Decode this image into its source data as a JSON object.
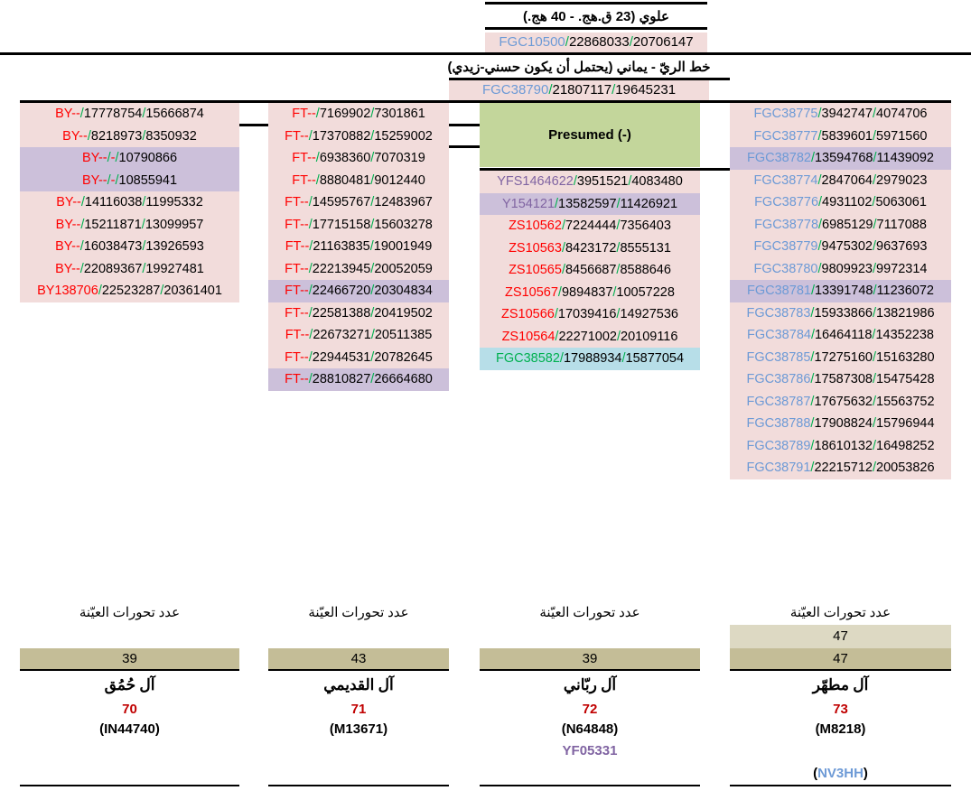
{
  "colors": {
    "pink": "#F2DCDB",
    "purple": "#CCC0DA",
    "green_box": "#C3D69B",
    "light_blue": "#B7DEE8",
    "tan": "#C4BD97",
    "tan_light": "#DDD9C3",
    "red": "#FF0000",
    "green": "#00B050",
    "blue": "#6D9AD6",
    "violet": "#8064A2",
    "dark_red": "#C00000",
    "black": "#000000"
  },
  "header_top": {
    "title": "علوي (23 ق.هج. - 40 هج.)",
    "snp": {
      "snp": "FGC10500",
      "snp_color": "blue",
      "v1": "22868033",
      "v2": "20706147",
      "bg": "pink"
    }
  },
  "header_second": {
    "title": "خط الريّ - يماني (يحتمل أن يكون حسني-زيدي)",
    "snp": {
      "snp": "FGC38790",
      "snp_color": "blue",
      "v1": "21807117",
      "v2": "19645231",
      "bg": "pink"
    }
  },
  "presumed": {
    "label": "Presumed (-)",
    "bg": "green_box"
  },
  "columns": [
    {
      "name": "by-branch",
      "rows": [
        {
          "snp": "BY--",
          "snp_color": "red",
          "v1": "17778754",
          "v2": "15666874",
          "bg": "pink"
        },
        {
          "snp": "BY--",
          "snp_color": "red",
          "v1": "8218973",
          "v2": "8350932",
          "bg": "pink"
        },
        {
          "snp": "BY--",
          "snp_color": "red",
          "v1": "-",
          "v1_color": "red",
          "v2": "10790866",
          "bg": "purple"
        },
        {
          "snp": "BY--",
          "snp_color": "red",
          "v1": "-",
          "v1_color": "red",
          "v2": "10855941",
          "bg": "purple"
        },
        {
          "snp": "BY--",
          "snp_color": "red",
          "v1": "14116038",
          "v2": "11995332",
          "bg": "pink"
        },
        {
          "snp": "BY--",
          "snp_color": "red",
          "v1": "15211871",
          "v2": "13099957",
          "bg": "pink"
        },
        {
          "snp": "BY--",
          "snp_color": "red",
          "v1": "16038473",
          "v2": "13926593",
          "bg": "pink"
        },
        {
          "snp": "BY--",
          "snp_color": "red",
          "v1": "22089367",
          "v2": "19927481",
          "bg": "pink"
        },
        {
          "snp": "BY138706",
          "snp_color": "red",
          "v1": "22523287",
          "v2": "20361401",
          "bg": "pink"
        }
      ]
    },
    {
      "name": "ft-branch",
      "rows": [
        {
          "snp": "FT--",
          "snp_color": "red",
          "v1": "7169902",
          "v2": "7301861",
          "bg": "pink"
        },
        {
          "snp": "FT--",
          "snp_color": "red",
          "v1": "17370882",
          "v2": "15259002",
          "bg": "pink"
        },
        {
          "snp": "FT--",
          "snp_color": "red",
          "v1": "6938360",
          "v2": "7070319",
          "bg": "pink"
        },
        {
          "snp": "FT--",
          "snp_color": "red",
          "v1": "8880481",
          "v2": "9012440",
          "bg": "pink"
        },
        {
          "snp": "FT--",
          "snp_color": "red",
          "v1": "14595767",
          "v2": "12483967",
          "bg": "pink"
        },
        {
          "snp": "FT--",
          "snp_color": "red",
          "v1": "17715158",
          "v2": "15603278",
          "bg": "pink"
        },
        {
          "snp": "FT--",
          "snp_color": "red",
          "v1": "21163835",
          "v2": "19001949",
          "bg": "pink"
        },
        {
          "snp": "FT--",
          "snp_color": "red",
          "v1": "22213945",
          "v2": "20052059",
          "bg": "pink"
        },
        {
          "snp": "FT--",
          "snp_color": "red",
          "v1": "22466720",
          "v2": "20304834",
          "bg": "purple"
        },
        {
          "snp": "FT--",
          "snp_color": "red",
          "v1": "22581388",
          "v2": "20419502",
          "bg": "pink"
        },
        {
          "snp": "FT--",
          "snp_color": "red",
          "v1": "22673271",
          "v2": "20511385",
          "bg": "pink"
        },
        {
          "snp": "FT--",
          "snp_color": "red",
          "v1": "22944531",
          "v2": "20782645",
          "bg": "pink"
        },
        {
          "snp": "FT--",
          "snp_color": "red",
          "v1": "28810827",
          "v2": "26664680",
          "bg": "purple"
        }
      ]
    },
    {
      "name": "middle-branch",
      "rows": [
        {
          "snp": "YFS1464622",
          "snp_color": "violet",
          "v1": "3951521",
          "v2": "4083480",
          "bg": "pink"
        },
        {
          "snp": "Y154121",
          "snp_color": "violet",
          "v1": "13582597",
          "v2": "11426921",
          "bg": "purple"
        },
        {
          "snp": "ZS10562",
          "snp_color": "red",
          "v1": "7224444",
          "v2": "7356403",
          "bg": "pink"
        },
        {
          "snp": "ZS10563",
          "snp_color": "red",
          "v1": "8423172",
          "v2": "8555131",
          "bg": "pink"
        },
        {
          "snp": "ZS10565",
          "snp_color": "red",
          "v1": "8456687",
          "v2": "8588646",
          "bg": "pink"
        },
        {
          "snp": "ZS10567",
          "snp_color": "red",
          "v1": "9894837",
          "v2": "10057228",
          "bg": "pink"
        },
        {
          "snp": "ZS10566",
          "snp_color": "red",
          "v1": "17039416",
          "v2": "14927536",
          "bg": "pink"
        },
        {
          "snp": "ZS10564",
          "snp_color": "red",
          "v1": "22271002",
          "v2": "20109116",
          "bg": "pink"
        },
        {
          "snp": "FGC38582",
          "snp_color": "green",
          "v1": "17988934",
          "v2": "15877054",
          "bg": "light_blue"
        }
      ]
    },
    {
      "name": "fgc-branch",
      "rows": [
        {
          "snp": "FGC38775",
          "snp_color": "blue",
          "v1": "3942747",
          "v2": "4074706",
          "bg": "pink"
        },
        {
          "snp": "FGC38777",
          "snp_color": "blue",
          "v1": "5839601",
          "v2": "5971560",
          "bg": "pink"
        },
        {
          "snp": "FGC38782",
          "snp_color": "blue",
          "v1": "13594768",
          "v2": "11439092",
          "bg": "purple"
        },
        {
          "snp": "FGC38774",
          "snp_color": "blue",
          "v1": "2847064",
          "v2": "2979023",
          "bg": "pink"
        },
        {
          "snp": "FGC38776",
          "snp_color": "blue",
          "v1": "4931102",
          "v2": "5063061",
          "bg": "pink"
        },
        {
          "snp": "FGC38778",
          "snp_color": "blue",
          "v1": "6985129",
          "v2": "7117088",
          "bg": "pink"
        },
        {
          "snp": "FGC38779",
          "snp_color": "blue",
          "v1": "9475302",
          "v2": "9637693",
          "bg": "pink"
        },
        {
          "snp": "FGC38780",
          "snp_color": "blue",
          "v1": "9809923",
          "v2": "9972314",
          "bg": "pink"
        },
        {
          "snp": "FGC38781",
          "snp_color": "blue",
          "v1": "13391748",
          "v2": "11236072",
          "bg": "purple"
        },
        {
          "snp": "FGC38783",
          "snp_color": "blue",
          "v1": "15933866",
          "v2": "13821986",
          "bg": "pink"
        },
        {
          "snp": "FGC38784",
          "snp_color": "blue",
          "v1": "16464118",
          "v2": "14352238",
          "bg": "pink"
        },
        {
          "snp": "FGC38785",
          "snp_color": "blue",
          "v1": "17275160",
          "v2": "15163280",
          "bg": "pink"
        },
        {
          "snp": "FGC38786",
          "snp_color": "blue",
          "v1": "17587308",
          "v2": "15475428",
          "bg": "pink"
        },
        {
          "snp": "FGC38787",
          "snp_color": "blue",
          "v1": "17675632",
          "v2": "15563752",
          "bg": "pink"
        },
        {
          "snp": "FGC38788",
          "snp_color": "blue",
          "v1": "17908824",
          "v2": "15796944",
          "bg": "pink"
        },
        {
          "snp": "FGC38789",
          "snp_color": "blue",
          "v1": "18610132",
          "v2": "16498252",
          "bg": "pink"
        },
        {
          "snp": "FGC38791",
          "snp_color": "blue",
          "v1": "22215712",
          "v2": "20053826",
          "bg": "pink"
        }
      ]
    }
  ],
  "samples": [
    {
      "label": "عدد تحورات العيّنة",
      "counts": [
        {
          "value": "39",
          "bg": "tan"
        }
      ],
      "clan": "آل حُمُق",
      "mutation_number": "70",
      "kit_id": "(IN44740)",
      "extra": null
    },
    {
      "label": "عدد تحورات العيّنة",
      "counts": [
        {
          "value": "43",
          "bg": "tan"
        }
      ],
      "clan": "آل القديمي",
      "mutation_number": "71",
      "kit_id": "(M13671)",
      "extra": null
    },
    {
      "label": "عدد تحورات العيّنة",
      "counts": [
        {
          "value": "39",
          "bg": "tan"
        }
      ],
      "clan": "آل ربّاني",
      "mutation_number": "72",
      "kit_id": "(N64848)",
      "extra": {
        "text": "YF05331",
        "color": "violet",
        "parens": false
      }
    },
    {
      "label": "عدد تحورات العيّنة",
      "counts": [
        {
          "value": "47",
          "bg": "tan_light"
        },
        {
          "value": "47",
          "bg": "tan"
        }
      ],
      "clan": "آل مطهّر",
      "mutation_number": "73",
      "kit_id": "(M8218)",
      "extra": {
        "text": "NV3HH",
        "color": "blue",
        "parens": true
      }
    }
  ]
}
